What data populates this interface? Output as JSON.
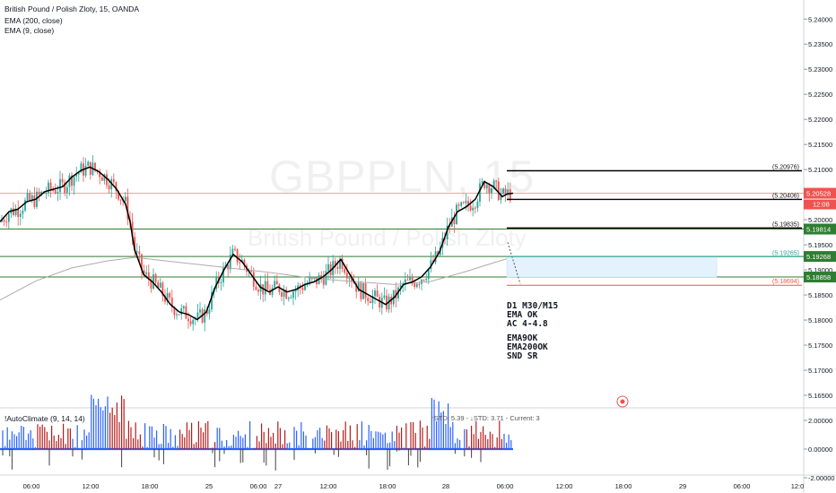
{
  "header": {
    "symbol_line": "British Pound / Polish Zloty, 15, OANDA",
    "ema200_label": "EMA (200, close)",
    "ema9_label": "EMA (9, close)"
  },
  "watermark": {
    "symbol": "GBPPLN, 15",
    "name": "British Pound / Polish Zloty"
  },
  "notes": {
    "line1": "D1 M30/M15",
    "line2": "EMA OK",
    "line3": "AC 4-4.8",
    "line4": "EMA9OK",
    "line5": "EMA200OK",
    "line6": "SND SR"
  },
  "indicator": {
    "name": "!AutoClimate (9, 14, 14)",
    "info": "↑STD: 5.39 - ↓STD: 3.71 - Current: 3",
    "axis_ticks": [
      "2.00000",
      "0.00000",
      "-2.00000"
    ]
  },
  "colors": {
    "bull": "#26a69a",
    "bear": "#ef5350",
    "price_badge": "#ef5350",
    "green_level": "#2e7d32",
    "teal_level": "#26a69a",
    "ind_blue": "#2962ff",
    "ind_red": "#b71c1c"
  },
  "chart_data": {
    "type": "candlestick",
    "price_axis": {
      "ticks": [
        "5.24000",
        "5.23500",
        "5.23000",
        "5.22500",
        "5.22000",
        "5.21500",
        "5.21000",
        "5.20500",
        "5.20000",
        "5.19500",
        "5.19000",
        "5.18500",
        "5.18000",
        "5.17500",
        "5.17000",
        "5.16500"
      ],
      "ylim": [
        5.1625,
        5.2438
      ]
    },
    "time_axis": {
      "ticks": [
        "06:00",
        "12:00",
        "18:00",
        "25",
        "06:00",
        "27",
        "12:00",
        "18:00",
        "28",
        "06:00",
        "12:00",
        "18:00",
        "29",
        "06:00",
        "12:0"
      ]
    },
    "last_price": {
      "value": "5.20528",
      "countdown": "12:08"
    },
    "level_badges": [
      {
        "value": "5.19814",
        "color": "#2e7d32"
      },
      {
        "value": "5.19268",
        "color": "#2e7d32"
      },
      {
        "value": "5.18858",
        "color": "#2e7d32"
      }
    ],
    "horizontal_levels": [
      {
        "label": "(5.20976)",
        "price": 5.20976,
        "color": "#000000"
      },
      {
        "label": "(5.20406)",
        "price": 5.20406,
        "color": "#000000"
      },
      {
        "label": "(5.19835)",
        "price": 5.19835,
        "color": "#000000"
      },
      {
        "label": "(5.19265)",
        "price": 5.19265,
        "color": "#26a69a"
      },
      {
        "label": "(5.18694)",
        "price": 5.18694,
        "color": "#ef5350"
      }
    ],
    "ema9_path": [
      [
        0,
        5.1996
      ],
      [
        10,
        5.2016
      ],
      [
        20,
        5.2021
      ],
      [
        30,
        5.2036
      ],
      [
        40,
        5.2041
      ],
      [
        50,
        5.2056
      ],
      [
        60,
        5.2061
      ],
      [
        70,
        5.2066
      ],
      [
        80,
        5.2085
      ],
      [
        90,
        5.2098
      ],
      [
        100,
        5.2105
      ],
      [
        110,
        5.2096
      ],
      [
        120,
        5.2081
      ],
      [
        130,
        5.2061
      ],
      [
        140,
        5.2031
      ],
      [
        145,
        5.1996
      ],
      [
        150,
        5.1941
      ],
      [
        160,
        5.1891
      ],
      [
        170,
        5.1876
      ],
      [
        180,
        5.1856
      ],
      [
        190,
        5.1831
      ],
      [
        200,
        5.1816
      ],
      [
        210,
        5.1811
      ],
      [
        220,
        5.1801
      ],
      [
        230,
        5.1816
      ],
      [
        240,
        5.1866
      ],
      [
        250,
        5.1901
      ],
      [
        260,
        5.1931
      ],
      [
        270,
        5.1916
      ],
      [
        280,
        5.1891
      ],
      [
        290,
        5.1866
      ],
      [
        300,
        5.1856
      ],
      [
        310,
        5.1866
      ],
      [
        320,
        5.1856
      ],
      [
        330,
        5.1861
      ],
      [
        340,
        5.1871
      ],
      [
        350,
        5.1876
      ],
      [
        360,
        5.1886
      ],
      [
        370,
        5.1901
      ],
      [
        380,
        5.1921
      ],
      [
        390,
        5.1891
      ],
      [
        400,
        5.1861
      ],
      [
        410,
        5.1851
      ],
      [
        420,
        5.1841
      ],
      [
        430,
        5.1831
      ],
      [
        440,
        5.1846
      ],
      [
        450,
        5.1871
      ],
      [
        460,
        5.1876
      ],
      [
        470,
        5.1886
      ],
      [
        480,
        5.1906
      ],
      [
        490,
        5.1936
      ],
      [
        500,
        5.1986
      ],
      [
        510,
        5.2016
      ],
      [
        520,
        5.2026
      ],
      [
        530,
        5.2041
      ],
      [
        540,
        5.2076
      ],
      [
        550,
        5.2066
      ],
      [
        560,
        5.2046
      ],
      [
        565,
        5.2051
      ],
      [
        572,
        5.2053
      ]
    ],
    "ema200_path": [
      [
        0,
        5.184
      ],
      [
        40,
        5.1878
      ],
      [
        80,
        5.1904
      ],
      [
        120,
        5.1918
      ],
      [
        150,
        5.1925
      ],
      [
        200,
        5.1915
      ],
      [
        250,
        5.1905
      ],
      [
        300,
        5.1895
      ],
      [
        350,
        5.1883
      ],
      [
        400,
        5.1876
      ],
      [
        440,
        5.1871
      ],
      [
        480,
        5.1877
      ],
      [
        520,
        5.1897
      ],
      [
        550,
        5.1914
      ],
      [
        572,
        5.1926
      ]
    ],
    "zone": {
      "top": 5.19265,
      "bottom": 5.18858
    }
  }
}
